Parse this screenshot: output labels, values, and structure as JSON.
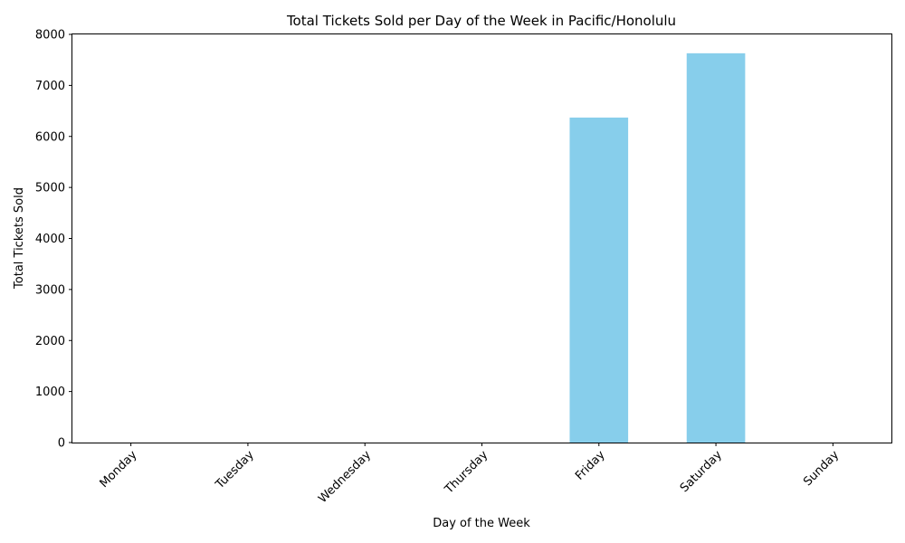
{
  "chart_data": {
    "type": "bar",
    "title": "Total Tickets Sold per Day of the Week in Pacific/Honolulu",
    "xlabel": "Day of the Week",
    "ylabel": "Total Tickets Sold",
    "categories": [
      "Monday",
      "Tuesday",
      "Wednesday",
      "Thursday",
      "Friday",
      "Saturday",
      "Sunday"
    ],
    "values": [
      0,
      0,
      0,
      0,
      6370,
      7630,
      0
    ],
    "ylim": [
      0,
      8000
    ],
    "yticks": [
      0,
      1000,
      2000,
      3000,
      4000,
      5000,
      6000,
      7000,
      8000
    ],
    "bar_color": "#87ceeb",
    "grid": false,
    "legend": "none"
  }
}
